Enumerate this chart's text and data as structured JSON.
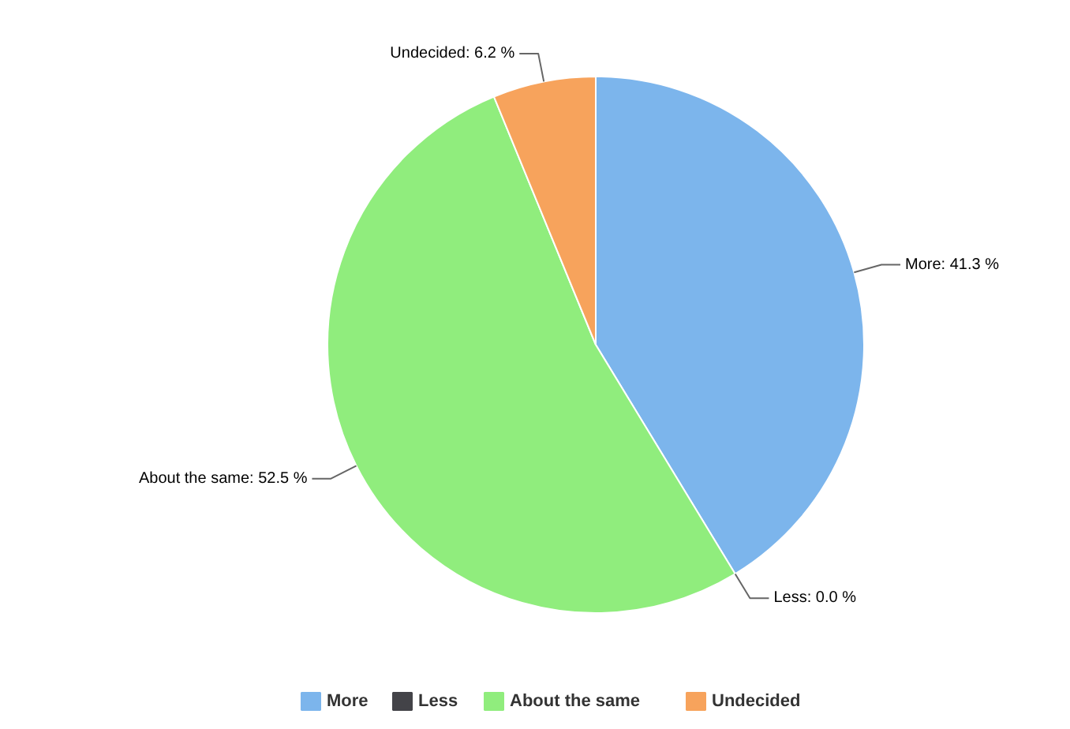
{
  "chart_data": {
    "type": "pie",
    "categories": [
      "More",
      "Less",
      "About the same",
      "Undecided"
    ],
    "values": [
      41.3,
      0.0,
      52.5,
      6.2
    ],
    "colors": [
      "#7cb5ec",
      "#434348",
      "#90ed7d",
      "#f7a35c"
    ],
    "value_labels": [
      "More: 41.3 %",
      "Less: 0.0 %",
      "About the same: 52.5 %",
      "Undecided: 6.2 %"
    ],
    "legend": "bottom"
  }
}
